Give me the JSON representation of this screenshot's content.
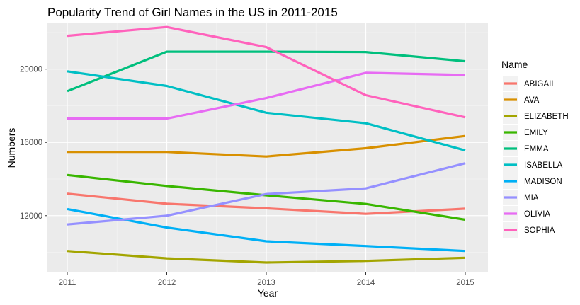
{
  "chart_data": {
    "type": "line",
    "title": "Popularity Trend of Girl Names in the US in 2011-2015",
    "xlabel": "Year",
    "ylabel": "Numbers",
    "x": [
      2011,
      2012,
      2013,
      2014,
      2015
    ],
    "xticks": [
      "2011",
      "2012",
      "2013",
      "2014",
      "2015"
    ],
    "yticks": [
      "12000",
      "16000",
      "20000"
    ],
    "ylim": [
      8900,
      22500
    ],
    "legend_title": "Name",
    "legend_position": "right",
    "grid": true,
    "panel_background": "#ebebeb",
    "series": [
      {
        "name": "ABIGAIL",
        "color": "#F8766D",
        "values": [
          13200,
          12650,
          12400,
          12100,
          12380
        ]
      },
      {
        "name": "AVA",
        "color": "#D89000",
        "values": [
          15480,
          15480,
          15230,
          15680,
          16350
        ]
      },
      {
        "name": "ELIZABETH",
        "color": "#A3A500",
        "values": [
          10070,
          9670,
          9440,
          9530,
          9700
        ]
      },
      {
        "name": "EMILY",
        "color": "#39B600",
        "values": [
          14220,
          13620,
          13110,
          12640,
          11780
        ]
      },
      {
        "name": "EMMA",
        "color": "#00BF7D",
        "values": [
          18800,
          20950,
          20950,
          20930,
          20430
        ]
      },
      {
        "name": "ISABELLA",
        "color": "#00BFC4",
        "values": [
          19880,
          19080,
          17620,
          17050,
          15560
        ]
      },
      {
        "name": "MADISON",
        "color": "#00B0F6",
        "values": [
          12360,
          11350,
          10600,
          10340,
          10070
        ]
      },
      {
        "name": "MIA",
        "color": "#9590FF",
        "values": [
          11520,
          12000,
          13180,
          13490,
          14860
        ]
      },
      {
        "name": "OLIVIA",
        "color": "#E76BF3",
        "values": [
          17300,
          17300,
          18420,
          19800,
          19680
        ]
      },
      {
        "name": "SOPHIA",
        "color": "#FF62BC",
        "values": [
          21820,
          22300,
          21200,
          18580,
          17370
        ]
      }
    ]
  }
}
